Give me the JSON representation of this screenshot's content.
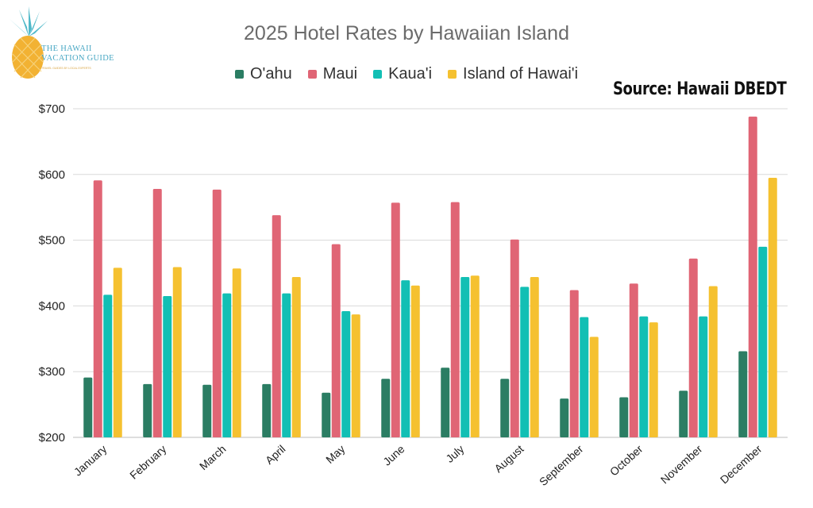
{
  "logo": {
    "line1": "THE HAWAII",
    "line2": "VACATION GUIDE",
    "tagline": "TRAVEL GUIDES BY LOCAL EXPERTS"
  },
  "source_label": "Source: Hawaii DBEDT",
  "colors": {
    "oahu": "#2b7d63",
    "maui": "#e06575",
    "kauai": "#12bfb4",
    "hawaii": "#f5c130",
    "grid": "#d9d9d9",
    "axis_text": "#222222"
  },
  "chart_data": {
    "type": "bar",
    "title": "2025 Hotel Rates by Hawaiian Island",
    "xlabel": "",
    "ylabel": "",
    "ylim": [
      200,
      700
    ],
    "yticks": [
      200,
      300,
      400,
      500,
      600,
      700
    ],
    "ytick_labels": [
      "$200",
      "$300",
      "$400",
      "$500",
      "$600",
      "$700"
    ],
    "grid": true,
    "legend_position": "top",
    "categories": [
      "January",
      "February",
      "March",
      "April",
      "May",
      "June",
      "July",
      "August",
      "September",
      "October",
      "November",
      "December"
    ],
    "series": [
      {
        "name": "O'ahu",
        "color_key": "oahu",
        "values": [
          291,
          281,
          280,
          281,
          268,
          289,
          306,
          289,
          259,
          261,
          271,
          331
        ]
      },
      {
        "name": "Maui",
        "color_key": "maui",
        "values": [
          591,
          578,
          577,
          538,
          494,
          557,
          558,
          501,
          424,
          434,
          472,
          688
        ]
      },
      {
        "name": "Kaua'i",
        "color_key": "kauai",
        "values": [
          417,
          415,
          419,
          419,
          392,
          439,
          444,
          429,
          383,
          384,
          384,
          490
        ]
      },
      {
        "name": "Island of Hawai'i",
        "color_key": "hawaii",
        "values": [
          458,
          459,
          457,
          444,
          387,
          431,
          446,
          444,
          353,
          375,
          430,
          595
        ]
      }
    ]
  }
}
